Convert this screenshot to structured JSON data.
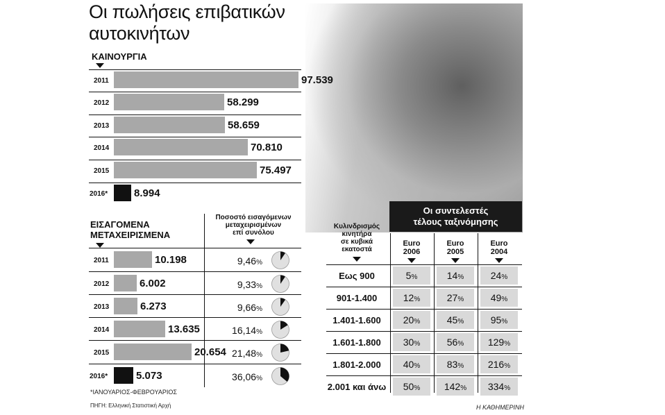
{
  "title_line1": "Οι πωλήσεις επιβατικών",
  "title_line2": "αυτοκινήτων",
  "new_cars": {
    "label": "ΚΑΙΝΟΥΡΓΙΑ",
    "rows": [
      {
        "year": "2011",
        "value": 97539,
        "label": "97.539",
        "highlight": false
      },
      {
        "year": "2012",
        "value": 58299,
        "label": "58.299",
        "highlight": false
      },
      {
        "year": "2013",
        "value": 58659,
        "label": "58.659",
        "highlight": false
      },
      {
        "year": "2014",
        "value": 70810,
        "label": "70.810",
        "highlight": false
      },
      {
        "year": "2015",
        "value": 75497,
        "label": "75.497",
        "highlight": false
      },
      {
        "year": "2016*",
        "value": 8994,
        "label": "8.994",
        "highlight": true
      }
    ]
  },
  "used_cars": {
    "label_line1": "ΕΙΣΑΓΟΜΕΝΑ",
    "label_line2": "ΜΕΤΑΧΕΙΡΙΣΜΕΝΑ",
    "share_header_line1": "Ποσοστό εισαγόμενων",
    "share_header_line2": "μεταχειρισμένων",
    "share_header_line3": "επί συνόλου",
    "rows": [
      {
        "year": "2011",
        "value": 10198,
        "label": "10.198",
        "share": 9.46,
        "share_label": "9,46",
        "highlight": false
      },
      {
        "year": "2012",
        "value": 6002,
        "label": "6.002",
        "share": 9.33,
        "share_label": "9,33",
        "highlight": false
      },
      {
        "year": "2013",
        "value": 6273,
        "label": "6.273",
        "share": 9.66,
        "share_label": "9,66",
        "highlight": false
      },
      {
        "year": "2014",
        "value": 13635,
        "label": "13.635",
        "share": 16.14,
        "share_label": "16,14",
        "highlight": false
      },
      {
        "year": "2015",
        "value": 20654,
        "label": "20.654",
        "share": 21.48,
        "share_label": "21,48",
        "highlight": false
      },
      {
        "year": "2016*",
        "value": 5073,
        "label": "5.073",
        "share": 36.06,
        "share_label": "36,06",
        "highlight": true
      }
    ],
    "percent_sign": "%"
  },
  "tax": {
    "header_line1": "Οι συντελεστές",
    "header_line2": "τέλους ταξινόμησης",
    "cc_header_line1": "Κυλινδρισμός",
    "cc_header_line2": "κινητήρα",
    "cc_header_line3": "σε κυβικά",
    "cc_header_line4": "εκατοστά",
    "columns": [
      {
        "line1": "Euro",
        "line2": "2006"
      },
      {
        "line1": "Euro",
        "line2": "2005"
      },
      {
        "line1": "Euro",
        "line2": "2004"
      }
    ],
    "percent_sign": "%",
    "rows": [
      {
        "cc": "Εως 900",
        "values": [
          "5",
          "14",
          "24"
        ]
      },
      {
        "cc": "901-1.400",
        "values": [
          "12",
          "27",
          "49"
        ]
      },
      {
        "cc": "1.401-1.600",
        "values": [
          "20",
          "45",
          "95"
        ]
      },
      {
        "cc": "1.601-1.800",
        "values": [
          "30",
          "56",
          "129"
        ]
      },
      {
        "cc": "1.801-2.000",
        "values": [
          "40",
          "83",
          "216"
        ]
      },
      {
        "cc": "2.001 και άνω",
        "values": [
          "50",
          "142",
          "334"
        ]
      }
    ]
  },
  "footnote": "*ΙΑΝΟΥΑΡΙΟΣ-ΦΕΒΡΟΥΑΡΙΟΣ",
  "source": "ΠΗΓΗ: Ελληνική Στατιστική Αρχή",
  "credit": "Η ΚΑΘΗΜΕΡΙΝΗ",
  "colors": {
    "bar": "#a8a8a8",
    "highlight_bar": "#111111",
    "cell": "#d9d9d9",
    "header_bg": "#1a1a1a"
  },
  "chart_data": [
    {
      "type": "bar",
      "categories": [
        "2011",
        "2012",
        "2013",
        "2014",
        "2015",
        "2016*"
      ],
      "values": [
        97539,
        58299,
        58659,
        70810,
        75497,
        8994
      ],
      "title": "ΚΑΙΝΟΥΡΓΙΑ",
      "orientation": "horizontal"
    },
    {
      "type": "bar",
      "categories": [
        "2011",
        "2012",
        "2013",
        "2014",
        "2015",
        "2016*"
      ],
      "values": [
        10198,
        6002,
        6273,
        13635,
        20654,
        5073
      ],
      "title": "ΕΙΣΑΓΟΜΕΝΑ ΜΕΤΑΧΕΙΡΙΣΜΕΝΑ",
      "orientation": "horizontal"
    },
    {
      "type": "pie",
      "categories": [
        "2011",
        "2012",
        "2013",
        "2014",
        "2015",
        "2016*"
      ],
      "values": [
        9.46,
        9.33,
        9.66,
        16.14,
        21.48,
        36.06
      ],
      "title": "Ποσοστό εισαγόμενων μεταχειρισμένων επί συνόλου"
    },
    {
      "type": "table",
      "title": "Οι συντελεστές τέλους ταξινόμησης",
      "columns": [
        "Euro 2006",
        "Euro 2005",
        "Euro 2004"
      ],
      "rows": [
        "Εως 900",
        "901-1.400",
        "1.401-1.600",
        "1.601-1.800",
        "1.801-2.000",
        "2.001 και άνω"
      ],
      "values": [
        [
          5,
          14,
          24
        ],
        [
          12,
          27,
          49
        ],
        [
          20,
          45,
          95
        ],
        [
          30,
          56,
          129
        ],
        [
          40,
          83,
          216
        ],
        [
          50,
          142,
          334
        ]
      ]
    }
  ]
}
